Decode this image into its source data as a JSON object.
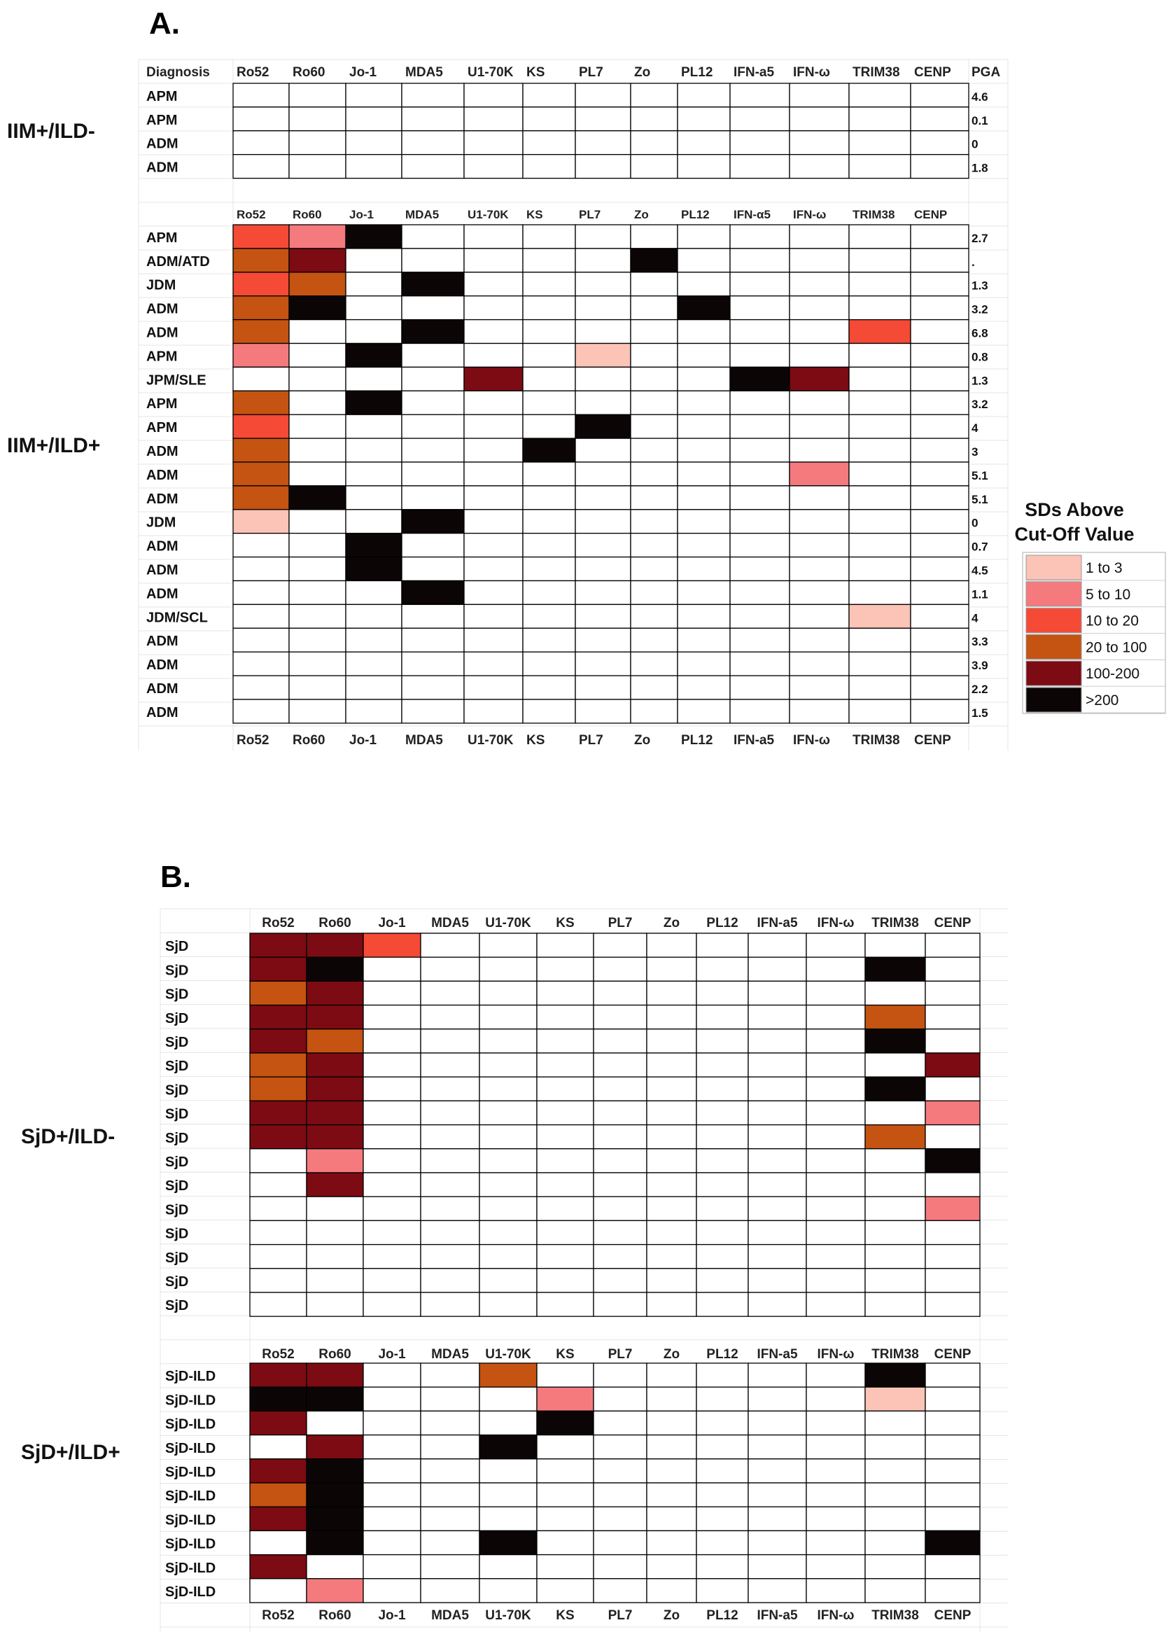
{
  "colors": {
    "1 to 3": "#fcc4b6",
    "5 to 10": "#f47a7e",
    "10 to 20": "#f44a36",
    "20 to 100": "#c55311",
    "100-200": "#7c0b13",
    ">200": "#0c0506",
    "none": "#ffffff"
  },
  "chart_data": [
    {
      "type": "heatmap",
      "panel": "A.",
      "title": "A.",
      "header_label": "Diagnosis",
      "pga_label": "PGA",
      "columns": [
        "Ro52",
        "Ro60",
        "Jo-1",
        "MDA5",
        "U1-70K",
        "KS",
        "PL7",
        "Zo",
        "PL12",
        "IFN-a5",
        "IFN-ω",
        "TRIM38",
        "CENP"
      ],
      "column_headers_mid": [
        "Ro52",
        "Ro60",
        "Jo-1",
        "MDA5",
        "U1-70K",
        "KS",
        "PL7",
        "Zo",
        "PL12",
        "IFN-α5",
        "IFN-ω",
        "TRIM38",
        "CENP"
      ],
      "column_headers_bottom": [
        "Ro52",
        "Ro60",
        "Jo-1",
        "MDA5",
        "U1-70K",
        "KS",
        "PL7",
        "Zo",
        "PL12",
        "IFN-a5",
        "IFN-ω",
        "TRIM38",
        "CENP"
      ],
      "groups": [
        {
          "name": "IIM+/ILD-",
          "rows": [
            {
              "label": "APM",
              "pga": "4.6",
              "values": {}
            },
            {
              "label": "APM",
              "pga": "0.1",
              "values": {}
            },
            {
              "label": "ADM",
              "pga": "0",
              "values": {}
            },
            {
              "label": "ADM",
              "pga": "1.8",
              "values": {}
            }
          ]
        },
        {
          "name": "IIM+/ILD+",
          "rows": [
            {
              "label": "APM",
              "pga": "2.7",
              "values": {
                "Ro52": "10 to 20",
                "Ro60": "5 to 10",
                "Jo-1": ">200"
              }
            },
            {
              "label": "ADM/ATD",
              "pga": ".",
              "values": {
                "Ro52": "20 to 100",
                "Ro60": "100-200",
                "Zo": ">200"
              }
            },
            {
              "label": "JDM",
              "pga": "1.3",
              "values": {
                "Ro52": "10 to 20",
                "Ro60": "20 to 100",
                "MDA5": ">200"
              }
            },
            {
              "label": "ADM",
              "pga": "3.2",
              "values": {
                "Ro52": "20 to 100",
                "Ro60": ">200",
                "PL12": ">200"
              }
            },
            {
              "label": "ADM",
              "pga": "6.8",
              "values": {
                "Ro52": "20 to 100",
                "MDA5": ">200",
                "TRIM38": "10 to 20"
              }
            },
            {
              "label": "APM",
              "pga": "0.8",
              "values": {
                "Ro52": "5 to 10",
                "Jo-1": ">200",
                "PL7": "1 to 3"
              }
            },
            {
              "label": "JPM/SLE",
              "pga": "1.3",
              "values": {
                "U1-70K": "100-200",
                "IFN-a5": ">200",
                "IFN-ω": "100-200"
              }
            },
            {
              "label": "APM",
              "pga": "3.2",
              "values": {
                "Ro52": "20 to 100",
                "Jo-1": ">200"
              }
            },
            {
              "label": "APM",
              "pga": "4",
              "values": {
                "Ro52": "10 to 20",
                "PL7": ">200"
              }
            },
            {
              "label": "ADM",
              "pga": "3",
              "values": {
                "Ro52": "20 to 100",
                "KS": ">200"
              }
            },
            {
              "label": "ADM",
              "pga": "5.1",
              "values": {
                "Ro52": "20 to 100",
                "IFN-ω": "5 to 10"
              }
            },
            {
              "label": "ADM",
              "pga": "5.1",
              "values": {
                "Ro52": "20 to 100",
                "Ro60": ">200"
              }
            },
            {
              "label": "JDM",
              "pga": "0",
              "values": {
                "Ro52": "1 to 3",
                "MDA5": ">200"
              }
            },
            {
              "label": "ADM",
              "pga": "0.7",
              "values": {
                "Jo-1": ">200"
              }
            },
            {
              "label": "ADM",
              "pga": "4.5",
              "values": {
                "Jo-1": ">200"
              }
            },
            {
              "label": "ADM",
              "pga": "1.1",
              "values": {
                "MDA5": ">200"
              }
            },
            {
              "label": "JDM/SCL",
              "pga": "4",
              "values": {
                "TRIM38": "1 to 3"
              }
            },
            {
              "label": "ADM",
              "pga": "3.3",
              "values": {}
            },
            {
              "label": "ADM",
              "pga": "3.9",
              "values": {}
            },
            {
              "label": "ADM",
              "pga": "2.2",
              "values": {}
            },
            {
              "label": "ADM",
              "pga": "1.5",
              "values": {}
            }
          ]
        }
      ],
      "legend": {
        "title": [
          "SDs Above",
          "Cut-Off Value"
        ],
        "items": [
          "1 to 3",
          "5 to 10",
          "10 to 20",
          "20 to 100",
          "100-200",
          ">200"
        ]
      }
    },
    {
      "type": "heatmap",
      "panel": "B.",
      "title": "B.",
      "columns": [
        "Ro52",
        "Ro60",
        "Jo-1",
        "MDA5",
        "U1-70K",
        "KS",
        "PL7",
        "Zo",
        "PL12",
        "IFN-a5",
        "IFN-ω",
        "TRIM38",
        "CENP"
      ],
      "column_headers": [
        "Ro52",
        "Ro60",
        "Jo-1",
        "MDA5",
        "U1-70K",
        "KS",
        "PL7",
        "Zo",
        "PL12",
        "IFN-a5",
        "IFN-ω",
        "TRIM38",
        "CENP"
      ],
      "groups": [
        {
          "name": "SjD+/ILD-",
          "rows": [
            {
              "label": "SjD",
              "values": {
                "Ro52": "100-200",
                "Ro60": "100-200",
                "Jo-1": "10 to 20"
              }
            },
            {
              "label": "SjD",
              "values": {
                "Ro52": "100-200",
                "Ro60": ">200",
                "TRIM38": ">200"
              }
            },
            {
              "label": "SjD",
              "values": {
                "Ro52": "20 to 100",
                "Ro60": "100-200"
              }
            },
            {
              "label": "SjD",
              "values": {
                "Ro52": "100-200",
                "Ro60": "100-200",
                "TRIM38": "20 to 100"
              }
            },
            {
              "label": "SjD",
              "values": {
                "Ro52": "100-200",
                "Ro60": "20 to 100",
                "TRIM38": ">200"
              }
            },
            {
              "label": "SjD",
              "values": {
                "Ro52": "20 to 100",
                "Ro60": "100-200",
                "CENP": "100-200"
              }
            },
            {
              "label": "SjD",
              "values": {
                "Ro52": "20 to 100",
                "Ro60": "100-200",
                "TRIM38": ">200"
              }
            },
            {
              "label": "SjD",
              "values": {
                "Ro52": "100-200",
                "Ro60": "100-200",
                "CENP": "5 to 10"
              }
            },
            {
              "label": "SjD",
              "values": {
                "Ro52": "100-200",
                "Ro60": "100-200",
                "TRIM38": "20 to 100"
              }
            },
            {
              "label": "SjD",
              "values": {
                "Ro60": "5 to 10",
                "CENP": ">200"
              }
            },
            {
              "label": "SjD",
              "values": {
                "Ro60": "100-200"
              }
            },
            {
              "label": "SjD",
              "values": {
                "CENP": "5 to 10"
              }
            },
            {
              "label": "SjD",
              "values": {}
            },
            {
              "label": "SjD",
              "values": {}
            },
            {
              "label": "SjD",
              "values": {}
            },
            {
              "label": "SjD",
              "values": {}
            }
          ]
        },
        {
          "name": "SjD+/ILD+",
          "rows": [
            {
              "label": "SjD-ILD",
              "values": {
                "Ro52": "100-200",
                "Ro60": "100-200",
                "U1-70K": "20 to 100",
                "TRIM38": ">200"
              }
            },
            {
              "label": "SjD-ILD",
              "values": {
                "Ro52": ">200",
                "Ro60": ">200",
                "KS": "5 to 10",
                "TRIM38": "1 to 3"
              }
            },
            {
              "label": "SjD-ILD",
              "values": {
                "Ro52": "100-200",
                "KS": ">200"
              }
            },
            {
              "label": "SjD-ILD",
              "values": {
                "Ro60": "100-200",
                "U1-70K": ">200"
              }
            },
            {
              "label": "SjD-ILD",
              "values": {
                "Ro52": "100-200",
                "Ro60": ">200"
              }
            },
            {
              "label": "SjD-ILD",
              "values": {
                "Ro52": "20 to 100",
                "Ro60": ">200"
              }
            },
            {
              "label": "SjD-ILD",
              "values": {
                "Ro52": "100-200",
                "Ro60": ">200"
              }
            },
            {
              "label": "SjD-ILD",
              "values": {
                "Ro60": ">200",
                "U1-70K": ">200",
                "CENP": ">200"
              }
            },
            {
              "label": "SjD-ILD",
              "values": {
                "Ro52": "100-200"
              }
            },
            {
              "label": "SjD-ILD",
              "values": {
                "Ro60": "5 to 10"
              }
            }
          ]
        }
      ]
    }
  ]
}
